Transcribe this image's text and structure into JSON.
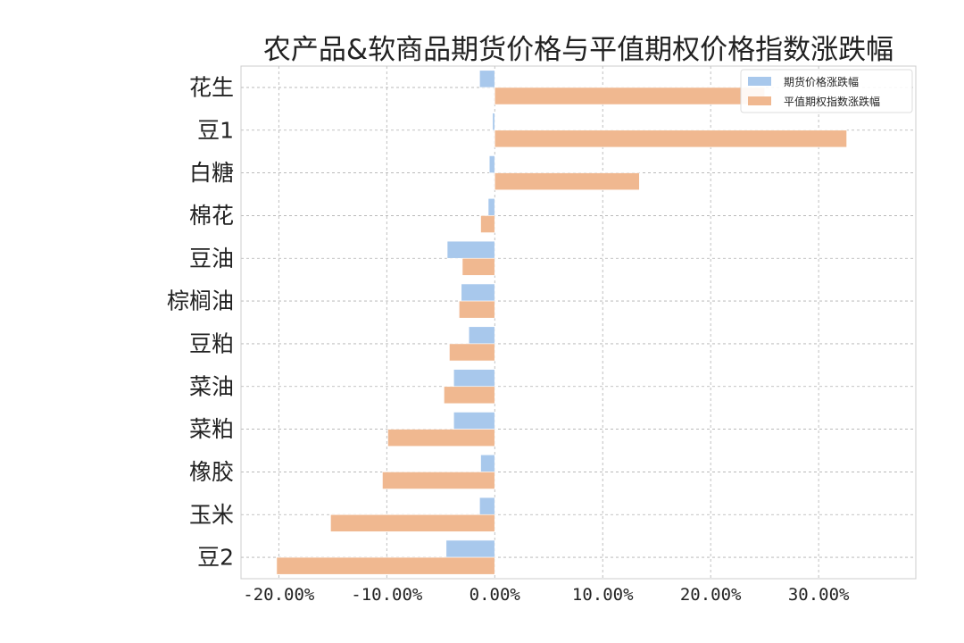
{
  "chart_data": {
    "type": "bar",
    "orientation": "horizontal",
    "title": "农产品&软商品期货价格与平值期权价格指数涨跌幅",
    "categories": [
      "花生",
      "豆1",
      "白糖",
      "棉花",
      "豆油",
      "棕榈油",
      "豆粕",
      "菜油",
      "菜粕",
      "橡胶",
      "玉米",
      "豆2"
    ],
    "series": [
      {
        "name": "期货价格涨跌幅",
        "color": "#a8c8ec",
        "values": [
          -1.4,
          -0.2,
          -0.5,
          -0.6,
          -4.4,
          -3.1,
          -2.4,
          -3.8,
          -3.8,
          -1.3,
          -1.4,
          -4.5
        ]
      },
      {
        "name": "平值期权指数涨跌幅",
        "color": "#f0b890",
        "values": [
          25.0,
          32.6,
          13.4,
          -1.3,
          -3.0,
          -3.3,
          -4.2,
          -4.7,
          -9.9,
          -10.4,
          -15.2,
          -20.2
        ]
      }
    ],
    "xticks": [
      -20,
      -10,
      0,
      10,
      20,
      30
    ],
    "xtick_labels": [
      "-20.00%",
      "-10.00%",
      "0.00%",
      "10.00%",
      "20.00%",
      "30.00%"
    ],
    "xlim": [
      -23.5,
      39.0
    ],
    "grid": true,
    "legend_position": "top-right"
  }
}
